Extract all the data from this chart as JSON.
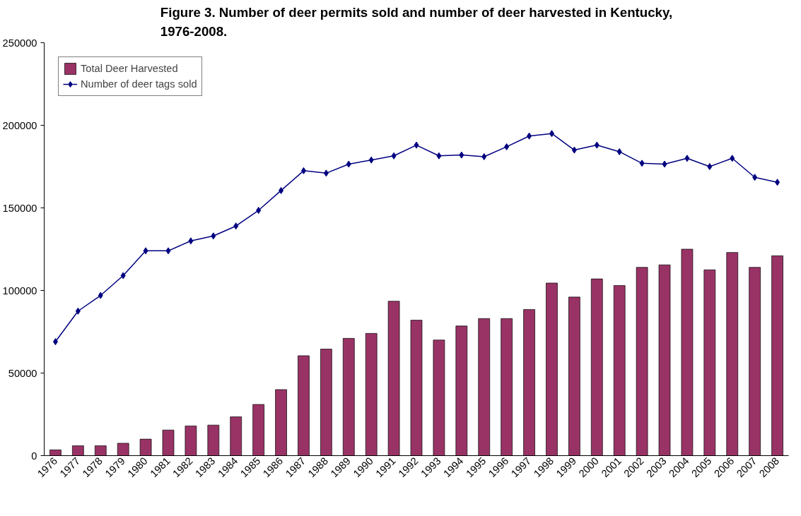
{
  "chart_data": {
    "type": "bar",
    "title": "Figure 3. Number of deer permits sold and number of deer harvested in Kentucky,\n1976-2008.",
    "categories": [
      "1976",
      "1977",
      "1978",
      "1979",
      "1980",
      "1981",
      "1982",
      "1983",
      "1984",
      "1985",
      "1986",
      "1987",
      "1988",
      "1989",
      "1990",
      "1991",
      "1992",
      "1993",
      "1994",
      "1995",
      "1996",
      "1997",
      "1998",
      "1999",
      "2000",
      "2001",
      "2002",
      "2003",
      "2004",
      "2005",
      "2006",
      "2007",
      "2008"
    ],
    "series": [
      {
        "name": "Total Deer Harvested",
        "color": "#993366",
        "values": [
          3500,
          6000,
          6000,
          7500,
          10000,
          15500,
          18000,
          18500,
          23500,
          31000,
          40000,
          60500,
          64500,
          71000,
          74000,
          93500,
          82000,
          70000,
          78500,
          83000,
          83000,
          88500,
          104500,
          96000,
          107000,
          103000,
          114000,
          115500,
          125000,
          112500,
          123000,
          114000,
          121000
        ]
      },
      {
        "name": "Number of deer tags sold",
        "type": "line",
        "color": "#000080",
        "marker": "diamond",
        "values": [
          69000,
          87500,
          97000,
          109000,
          124000,
          124000,
          130000,
          133000,
          139000,
          148500,
          160500,
          172500,
          171000,
          176500,
          179000,
          181500,
          188000,
          181500,
          182000,
          181000,
          187000,
          193500,
          195000,
          185000,
          188000,
          184000,
          177000,
          176500,
          180000,
          175000,
          180000,
          168500,
          165500
        ]
      }
    ],
    "ylim": [
      0,
      250000
    ],
    "yticks": [
      0,
      50000,
      100000,
      150000,
      200000,
      250000
    ],
    "grid": false,
    "legend": "top left"
  }
}
